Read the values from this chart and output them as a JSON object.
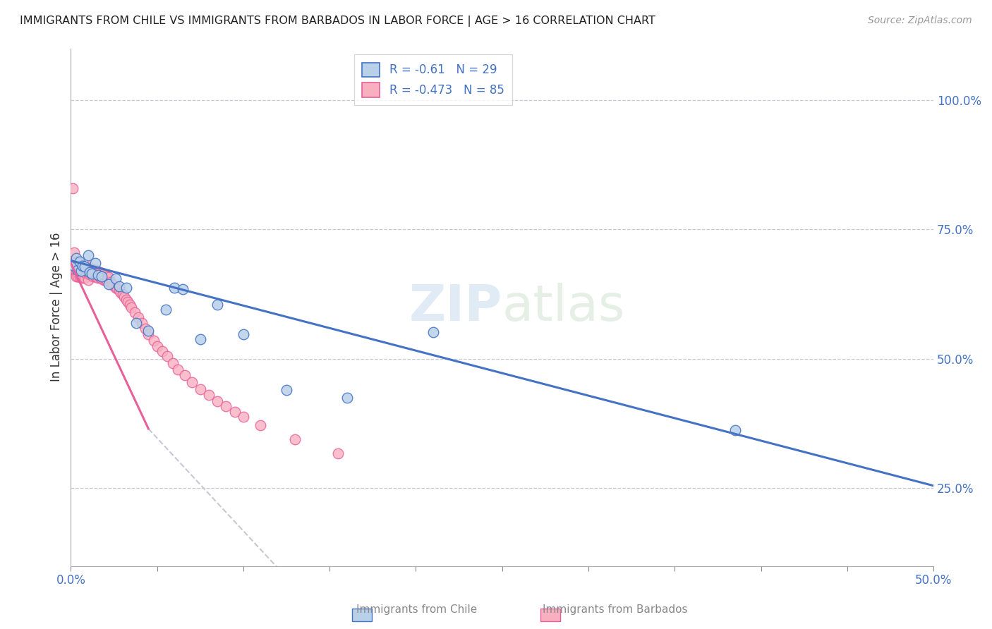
{
  "title": "IMMIGRANTS FROM CHILE VS IMMIGRANTS FROM BARBADOS IN LABOR FORCE | AGE > 16 CORRELATION CHART",
  "source": "Source: ZipAtlas.com",
  "ylabel": "In Labor Force | Age > 16",
  "y_ticks": [
    0.25,
    0.5,
    0.75,
    1.0
  ],
  "xlim": [
    0.0,
    0.5
  ],
  "ylim": [
    0.1,
    1.1
  ],
  "x_ticks": [
    0.0,
    0.05,
    0.1,
    0.15,
    0.2,
    0.25,
    0.3,
    0.35,
    0.4,
    0.45,
    0.5
  ],
  "chile_R": -0.61,
  "chile_N": 29,
  "barbados_R": -0.473,
  "barbados_N": 85,
  "chile_color": "#b8d0e8",
  "barbados_color": "#f8b0c0",
  "chile_line_color": "#4472c4",
  "barbados_line_color": "#e8609a",
  "gray_dash_color": "#c8c8d4",
  "chile_x": [
    0.002,
    0.003,
    0.004,
    0.005,
    0.006,
    0.007,
    0.008,
    0.01,
    0.011,
    0.012,
    0.014,
    0.016,
    0.018,
    0.022,
    0.026,
    0.028,
    0.032,
    0.038,
    0.045,
    0.055,
    0.06,
    0.065,
    0.075,
    0.085,
    0.1,
    0.125,
    0.16,
    0.21,
    0.385
  ],
  "chile_y": [
    0.68,
    0.695,
    0.672,
    0.688,
    0.67,
    0.68,
    0.678,
    0.7,
    0.668,
    0.665,
    0.685,
    0.662,
    0.66,
    0.645,
    0.655,
    0.64,
    0.638,
    0.57,
    0.555,
    0.595,
    0.638,
    0.635,
    0.538,
    0.605,
    0.548,
    0.44,
    0.425,
    0.552,
    0.362
  ],
  "barbados_x": [
    0.001,
    0.001,
    0.002,
    0.002,
    0.003,
    0.003,
    0.003,
    0.004,
    0.004,
    0.004,
    0.005,
    0.005,
    0.005,
    0.006,
    0.006,
    0.006,
    0.007,
    0.007,
    0.007,
    0.008,
    0.008,
    0.008,
    0.009,
    0.009,
    0.01,
    0.01,
    0.01,
    0.011,
    0.011,
    0.012,
    0.012,
    0.013,
    0.013,
    0.014,
    0.014,
    0.015,
    0.015,
    0.016,
    0.016,
    0.017,
    0.017,
    0.018,
    0.018,
    0.019,
    0.019,
    0.02,
    0.02,
    0.021,
    0.021,
    0.022,
    0.023,
    0.024,
    0.025,
    0.026,
    0.027,
    0.028,
    0.029,
    0.03,
    0.031,
    0.032,
    0.033,
    0.034,
    0.035,
    0.037,
    0.039,
    0.041,
    0.043,
    0.045,
    0.048,
    0.05,
    0.053,
    0.056,
    0.059,
    0.062,
    0.066,
    0.07,
    0.075,
    0.08,
    0.085,
    0.09,
    0.095,
    0.1,
    0.11,
    0.13,
    0.155
  ],
  "barbados_y": [
    0.83,
    0.685,
    0.705,
    0.672,
    0.68,
    0.668,
    0.66,
    0.68,
    0.668,
    0.66,
    0.685,
    0.672,
    0.658,
    0.68,
    0.668,
    0.658,
    0.68,
    0.668,
    0.656,
    0.678,
    0.668,
    0.656,
    0.675,
    0.665,
    0.678,
    0.665,
    0.652,
    0.675,
    0.663,
    0.675,
    0.663,
    0.672,
    0.66,
    0.672,
    0.66,
    0.67,
    0.658,
    0.668,
    0.656,
    0.668,
    0.656,
    0.665,
    0.655,
    0.665,
    0.653,
    0.662,
    0.652,
    0.66,
    0.65,
    0.658,
    0.648,
    0.645,
    0.642,
    0.638,
    0.636,
    0.632,
    0.628,
    0.625,
    0.62,
    0.615,
    0.61,
    0.605,
    0.6,
    0.59,
    0.58,
    0.57,
    0.558,
    0.548,
    0.535,
    0.525,
    0.515,
    0.505,
    0.492,
    0.48,
    0.468,
    0.455,
    0.442,
    0.43,
    0.418,
    0.408,
    0.398,
    0.388,
    0.372,
    0.345,
    0.318
  ],
  "watermark_zip": "ZIP",
  "watermark_atlas": "atlas",
  "background_color": "#ffffff"
}
